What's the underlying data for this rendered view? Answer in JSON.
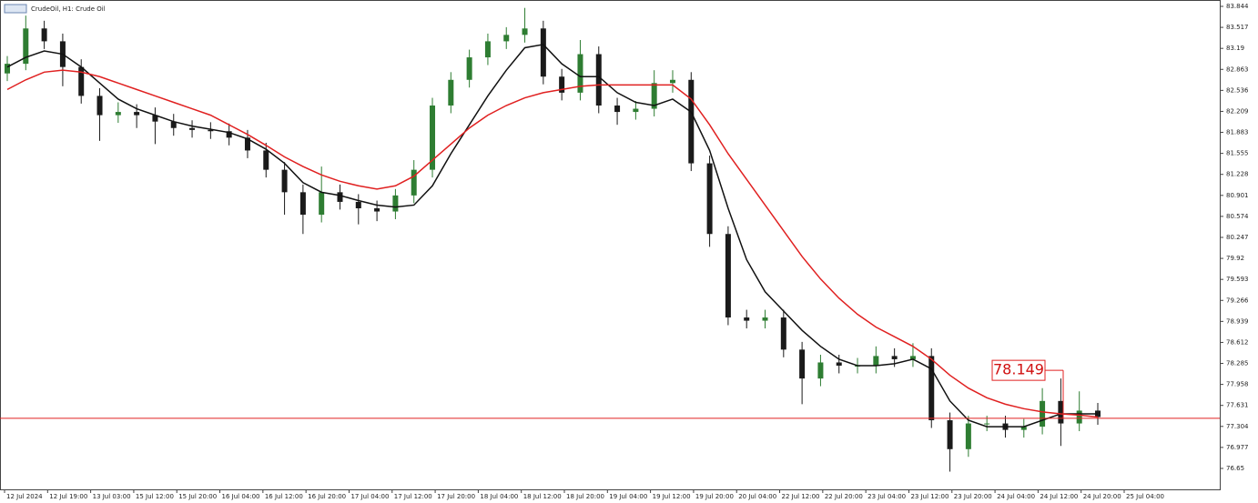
{
  "chart_data": {
    "type": "candlestick",
    "title": "CrudeOil, H1:  Crude Oil",
    "up_color": "#2e7d32",
    "down_color": "#1a1a1a",
    "open": [
      82.8,
      82.95,
      83.5,
      83.3,
      82.9,
      82.45,
      82.15,
      82.2,
      82.15,
      82.05,
      81.95,
      81.92,
      81.9,
      81.8,
      81.6,
      81.3,
      80.95,
      80.6,
      80.95,
      80.8,
      80.7,
      80.65,
      80.9,
      81.3,
      82.3,
      82.7,
      83.05,
      83.3,
      83.4,
      83.5,
      82.75,
      82.5,
      83.1,
      82.3,
      82.2,
      82.25,
      82.65,
      82.7,
      81.4,
      80.3,
      79.0,
      78.95,
      79.0,
      78.5,
      78.05,
      78.3,
      78.25,
      78.25,
      78.4,
      78.35,
      78.4,
      77.4,
      76.95,
      77.35,
      77.35,
      77.25,
      77.3,
      77.7,
      77.35,
      77.55
    ],
    "high": [
      83.07,
      83.7,
      83.62,
      83.42,
      83.02,
      82.57,
      82.35,
      82.32,
      82.27,
      82.17,
      82.07,
      82.04,
      82.02,
      81.92,
      81.72,
      81.42,
      81.07,
      81.35,
      81.07,
      80.92,
      80.82,
      81.0,
      81.45,
      82.42,
      82.82,
      83.17,
      83.42,
      83.52,
      83.82,
      83.62,
      82.87,
      83.32,
      83.22,
      82.42,
      82.37,
      82.85,
      82.85,
      82.82,
      81.52,
      80.42,
      79.12,
      79.12,
      79.12,
      78.62,
      78.42,
      78.42,
      78.37,
      78.55,
      78.52,
      78.6,
      78.52,
      77.52,
      77.47,
      77.47,
      77.47,
      77.42,
      77.9,
      78.05,
      77.85,
      77.67
    ],
    "low": [
      82.68,
      82.85,
      83.18,
      82.6,
      82.33,
      81.75,
      82.03,
      81.95,
      81.7,
      81.83,
      81.8,
      81.78,
      81.68,
      81.48,
      81.18,
      80.6,
      80.3,
      80.48,
      80.68,
      80.45,
      80.5,
      80.53,
      80.78,
      81.18,
      82.18,
      82.58,
      82.93,
      83.18,
      83.28,
      82.63,
      82.38,
      82.38,
      82.18,
      82.0,
      82.08,
      82.13,
      82.5,
      81.28,
      80.1,
      78.88,
      78.83,
      78.83,
      78.38,
      77.65,
      77.93,
      78.13,
      78.13,
      78.13,
      78.23,
      78.23,
      77.28,
      76.6,
      76.83,
      77.23,
      77.13,
      77.13,
      77.18,
      77.0,
      77.23,
      77.33
    ],
    "close": [
      82.95,
      83.5,
      83.3,
      82.9,
      82.45,
      82.15,
      82.2,
      82.15,
      82.05,
      81.95,
      81.92,
      81.9,
      81.8,
      81.6,
      81.3,
      80.95,
      80.6,
      80.95,
      80.8,
      80.7,
      80.65,
      80.9,
      81.3,
      82.3,
      82.7,
      83.05,
      83.3,
      83.4,
      83.5,
      82.75,
      82.5,
      83.1,
      82.3,
      82.2,
      82.25,
      82.65,
      82.7,
      81.4,
      80.3,
      79.0,
      78.95,
      79.0,
      78.5,
      78.05,
      78.3,
      78.25,
      78.25,
      78.4,
      78.35,
      78.4,
      77.4,
      76.95,
      77.35,
      77.35,
      77.25,
      77.3,
      77.7,
      77.35,
      77.55,
      77.45
    ],
    "series": [
      {
        "color": "#111111",
        "values": [
          82.9,
          83.05,
          83.15,
          83.1,
          82.9,
          82.65,
          82.4,
          82.25,
          82.15,
          82.05,
          81.98,
          81.93,
          81.88,
          81.78,
          81.62,
          81.4,
          81.1,
          80.95,
          80.9,
          80.82,
          80.75,
          80.72,
          80.75,
          81.05,
          81.55,
          82.0,
          82.45,
          82.85,
          83.2,
          83.25,
          82.95,
          82.75,
          82.75,
          82.5,
          82.35,
          82.3,
          82.4,
          82.2,
          81.6,
          80.7,
          79.9,
          79.4,
          79.1,
          78.8,
          78.55,
          78.35,
          78.25,
          78.25,
          78.28,
          78.35,
          78.2,
          77.7,
          77.4,
          77.3,
          77.3,
          77.3,
          77.4,
          77.5,
          77.5,
          77.5
        ]
      },
      {
        "color": "#e02020",
        "values": [
          82.55,
          82.7,
          82.82,
          82.85,
          82.82,
          82.75,
          82.65,
          82.55,
          82.45,
          82.35,
          82.25,
          82.15,
          82.0,
          81.85,
          81.68,
          81.5,
          81.35,
          81.22,
          81.12,
          81.05,
          81.0,
          81.05,
          81.2,
          81.45,
          81.7,
          81.95,
          82.15,
          82.3,
          82.42,
          82.5,
          82.55,
          82.6,
          82.62,
          82.62,
          82.62,
          82.62,
          82.62,
          82.4,
          82.0,
          81.55,
          81.15,
          80.75,
          80.35,
          79.95,
          79.6,
          79.3,
          79.05,
          78.85,
          78.7,
          78.55,
          78.35,
          78.1,
          77.9,
          77.75,
          77.65,
          77.58,
          77.53,
          77.5,
          77.48,
          77.45
        ]
      }
    ],
    "price_line": 77.43,
    "annotation": {
      "text": "78.149",
      "value": 78.149
    },
    "xlabels": [
      "12 Jul 2024",
      "12 Jul 19:00",
      "13 Jul 03:00",
      "15 Jul 12:00",
      "15 Jul 20:00",
      "16 Jul 04:00",
      "16 Jul 12:00",
      "16 Jul 20:00",
      "17 Jul 04:00",
      "17 Jul 12:00",
      "17 Jul 20:00",
      "18 Jul 04:00",
      "18 Jul 12:00",
      "18 Jul 20:00",
      "19 Jul 04:00",
      "19 Jul 12:00",
      "19 Jul 20:00",
      "20 Jul 04:00",
      "22 Jul 12:00",
      "22 Jul 20:00",
      "23 Jul 04:00",
      "23 Jul 12:00",
      "23 Jul 20:00",
      "24 Jul 04:00",
      "24 Jul 12:00",
      "24 Jul 20:00",
      "25 Jul 04:00"
    ],
    "ylim": [
      76.324,
      83.943
    ],
    "yticks": [
      83.844,
      83.517,
      83.19,
      82.863,
      82.536,
      82.209,
      81.883,
      81.555,
      81.228,
      80.901,
      80.574,
      80.247,
      79.92,
      79.593,
      79.266,
      78.939,
      78.612,
      78.285,
      77.958,
      77.631,
      77.304,
      76.977,
      76.65
    ]
  }
}
